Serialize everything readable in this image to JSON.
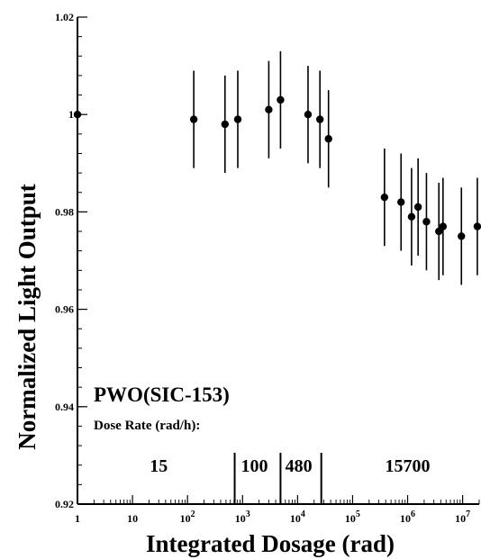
{
  "chart_data": {
    "type": "scatter",
    "title": "",
    "xlabel": "Integrated Dosage (rad)",
    "ylabel": "Normalized Light Output",
    "x_scale": "log",
    "xlim": [
      1,
      20000000
    ],
    "ylim": [
      0.92,
      1.02
    ],
    "y_ticks": [
      "0.92",
      "0.94",
      "0.96",
      "0.98",
      "1",
      "1.02"
    ],
    "x_ticks": [
      {
        "base": "1",
        "exp": ""
      },
      {
        "base": "10",
        "exp": ""
      },
      {
        "base": "10",
        "exp": "2"
      },
      {
        "base": "10",
        "exp": "3"
      },
      {
        "base": "10",
        "exp": "4"
      },
      {
        "base": "10",
        "exp": "5"
      },
      {
        "base": "10",
        "exp": "6"
      },
      {
        "base": "10",
        "exp": "7"
      }
    ],
    "grid": false,
    "points": [
      {
        "x": 1,
        "y": 1.0,
        "err": 0
      },
      {
        "x": 130,
        "y": 0.999,
        "err": 0.01
      },
      {
        "x": 480,
        "y": 0.998,
        "err": 0.01
      },
      {
        "x": 820,
        "y": 0.999,
        "err": 0.01
      },
      {
        "x": 3000,
        "y": 1.001,
        "err": 0.01
      },
      {
        "x": 4900,
        "y": 1.003,
        "err": 0.01
      },
      {
        "x": 15500,
        "y": 1.0,
        "err": 0.01
      },
      {
        "x": 25500,
        "y": 0.999,
        "err": 0.01
      },
      {
        "x": 36500,
        "y": 0.995,
        "err": 0.01
      },
      {
        "x": 380000,
        "y": 0.983,
        "err": 0.01
      },
      {
        "x": 760000,
        "y": 0.982,
        "err": 0.01
      },
      {
        "x": 1180000,
        "y": 0.979,
        "err": 0.01
      },
      {
        "x": 1550000,
        "y": 0.981,
        "err": 0.01
      },
      {
        "x": 2200000,
        "y": 0.978,
        "err": 0.01
      },
      {
        "x": 3700000,
        "y": 0.976,
        "err": 0.01
      },
      {
        "x": 4400000,
        "y": 0.977,
        "err": 0.01
      },
      {
        "x": 9500000,
        "y": 0.975,
        "err": 0.01
      },
      {
        "x": 18500000,
        "y": 0.977,
        "err": 0.01
      }
    ],
    "annotations": {
      "sample": "PWO(SIC-153)",
      "dose_rate_label": "Dose Rate (rad/h):",
      "dose_rates": [
        {
          "label": "15",
          "x": 30
        },
        {
          "label": "100",
          "x": 1650
        },
        {
          "label": "480",
          "x": 10500
        },
        {
          "label": "15700",
          "x": 1000000
        }
      ],
      "dividers": [
        720,
        4900,
        27000
      ]
    }
  }
}
